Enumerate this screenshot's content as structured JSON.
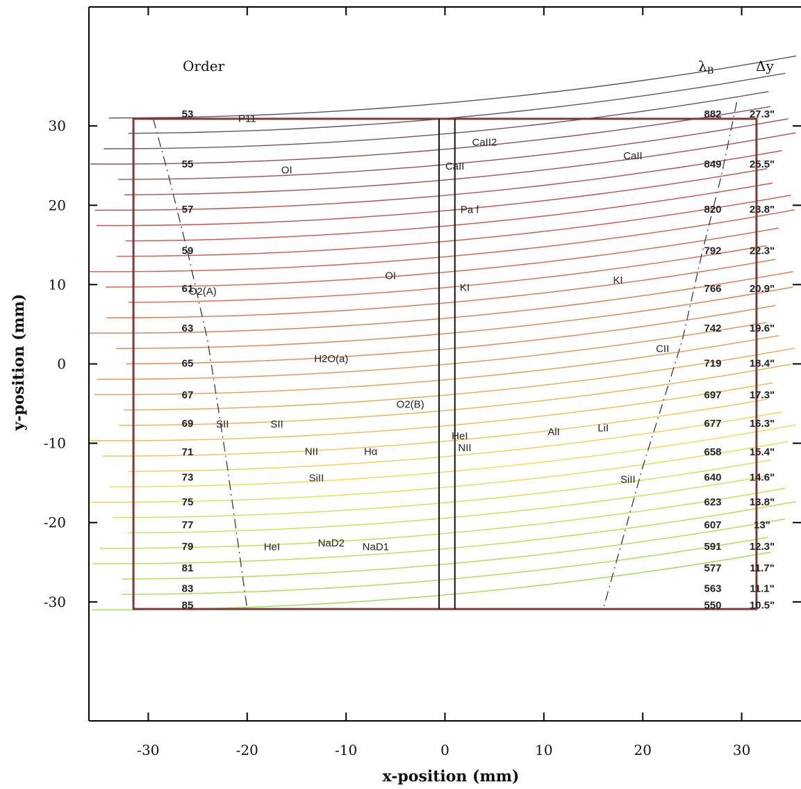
{
  "chart_data": {
    "type": "line",
    "xlabel": "x-position (mm)",
    "ylabel": "y-position (mm)",
    "xlim": [
      -36,
      36
    ],
    "ylim": [
      -45,
      45
    ],
    "x_ticks": [
      -30,
      -20,
      -10,
      0,
      10,
      20,
      30
    ],
    "y_ticks": [
      30,
      20,
      10,
      0,
      -10,
      -20,
      -30
    ],
    "headers": {
      "order": "Order",
      "lambda": "λ",
      "lambda_sub": "B",
      "dy": "Δy"
    },
    "orders": [
      {
        "order": "53",
        "lambda_b": "882",
        "dy": "27.3\"",
        "y": 31.5
      },
      {
        "order": "55",
        "lambda_b": "849",
        "dy": "25.5\"",
        "y": 25.2
      },
      {
        "order": "57",
        "lambda_b": "820",
        "dy": "23.8\"",
        "y": 19.5
      },
      {
        "order": "59",
        "lambda_b": "792",
        "dy": "22.3\"",
        "y": 14.3
      },
      {
        "order": "61",
        "lambda_b": "766",
        "dy": "20.9\"",
        "y": 9.5
      },
      {
        "order": "63",
        "lambda_b": "742",
        "dy": "19.6\"",
        "y": 4.5
      },
      {
        "order": "65",
        "lambda_b": "719",
        "dy": "18.4\"",
        "y": 0.1
      },
      {
        "order": "67",
        "lambda_b": "697",
        "dy": "17.3\"",
        "y": -3.9
      },
      {
        "order": "69",
        "lambda_b": "677",
        "dy": "16.3\"",
        "y": -7.5
      },
      {
        "order": "71",
        "lambda_b": "658",
        "dy": "15.4\"",
        "y": -11.1
      },
      {
        "order": "73",
        "lambda_b": "640",
        "dy": "14.6\"",
        "y": -14.3
      },
      {
        "order": "75",
        "lambda_b": "623",
        "dy": "13.8\"",
        "y": -17.4
      },
      {
        "order": "77",
        "lambda_b": "607",
        "dy": "13\"",
        "y": -20.3
      },
      {
        "order": "79",
        "lambda_b": "591",
        "dy": "12.3\"",
        "y": -23.0
      },
      {
        "order": "81",
        "lambda_b": "577",
        "dy": "11.7\"",
        "y": -25.7
      },
      {
        "order": "83",
        "lambda_b": "563",
        "dy": "11.1\"",
        "y": -28.3
      },
      {
        "order": "85",
        "lambda_b": "550",
        "dy": "10.5\"",
        "y": -30.4
      }
    ],
    "detector_box": {
      "x": [
        -31.5,
        31.5
      ],
      "y": [
        -30.9,
        30.9
      ],
      "color": "#7a3b36"
    },
    "slit": {
      "x": [
        -0.6,
        1.0
      ],
      "y": [
        -30.9,
        30.9
      ]
    },
    "order_traces": {
      "count": 33,
      "y_top": 32.0,
      "y_bottom": -30.0,
      "colors": [
        "#555555",
        "#d94a4a",
        "#e8864a",
        "#e8e04a",
        "#9ae04a"
      ]
    },
    "envelope_lines": [
      {
        "x": [
          -29.5,
          -28,
          -26,
          -24,
          -22,
          -20
        ],
        "y": [
          30.9,
          24,
          14,
          3,
          -13,
          -30.9
        ]
      },
      {
        "x": [
          29.5,
          28,
          26,
          24,
          20,
          16
        ],
        "y": [
          33,
          24,
          14,
          3,
          -13,
          -30.9
        ]
      }
    ],
    "line_ids": [
      {
        "text": "P11",
        "x": -20.0,
        "y": 30.5
      },
      {
        "text": "CaII2",
        "x": 4.0,
        "y": 27.5
      },
      {
        "text": "CaII",
        "x": 19.0,
        "y": 25.8
      },
      {
        "text": "OI",
        "x": -16.0,
        "y": 24.0
      },
      {
        "text": "CaII",
        "x": 1.0,
        "y": 24.5
      },
      {
        "text": "Pa f",
        "x": 2.5,
        "y": 19.0
      },
      {
        "text": "OI",
        "x": -5.5,
        "y": 10.7
      },
      {
        "text": "O2(A)",
        "x": -24.5,
        "y": 8.7
      },
      {
        "text": "KI",
        "x": 2.0,
        "y": 9.2
      },
      {
        "text": "KI",
        "x": 17.5,
        "y": 10.1
      },
      {
        "text": "H2O(a)",
        "x": -11.5,
        "y": 0.2
      },
      {
        "text": "CII",
        "x": 22.0,
        "y": 1.5
      },
      {
        "text": "O2(B)",
        "x": -3.5,
        "y": -5.5
      },
      {
        "text": "SII",
        "x": -22.5,
        "y": -8.0
      },
      {
        "text": "SII",
        "x": -17.0,
        "y": -8.0
      },
      {
        "text": "HeI",
        "x": 1.5,
        "y": -9.5
      },
      {
        "text": "AlI",
        "x": 11.0,
        "y": -9.0
      },
      {
        "text": "LiI",
        "x": 16.0,
        "y": -8.5
      },
      {
        "text": "NII",
        "x": 2.0,
        "y": -11.0
      },
      {
        "text": "NII",
        "x": -13.5,
        "y": -11.5
      },
      {
        "text": "Hα",
        "x": -7.5,
        "y": -11.5
      },
      {
        "text": "SiII",
        "x": -13.0,
        "y": -14.8
      },
      {
        "text": "SiII",
        "x": 18.5,
        "y": -15.0
      },
      {
        "text": "HeI",
        "x": -17.5,
        "y": -23.5
      },
      {
        "text": "NaD2",
        "x": -11.5,
        "y": -23.0
      },
      {
        "text": "NaD1",
        "x": -7.0,
        "y": -23.5
      }
    ]
  }
}
